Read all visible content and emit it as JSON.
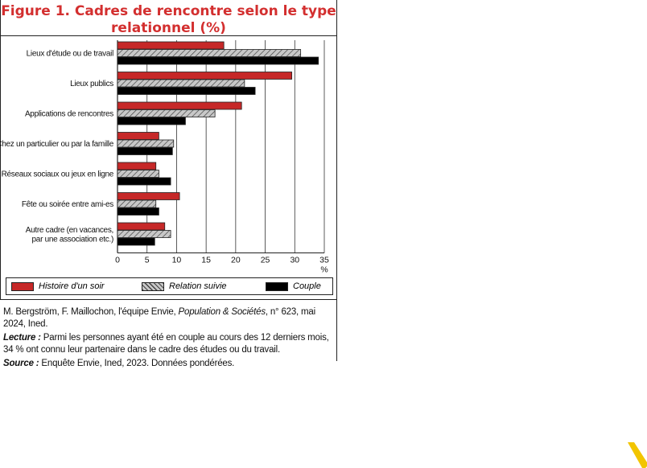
{
  "title": {
    "line1": "Figure 1. Cadres de rencontre selon le type",
    "line2": "relationnel (%)"
  },
  "legend": {
    "items": [
      "Histoire d'un soir",
      "Relation suivie",
      "Couple"
    ]
  },
  "footer": {
    "citation_pre": "M. Bergström, F. Maillochon, l'équipe Envie, ",
    "citation_journal": "Population & Sociétés",
    "citation_post": ", n° 623, mai 2024, Ined.",
    "lecture_label": "Lecture :",
    "lecture_text": " Parmi les personnes ayant été en couple au cours des 12 derniers mois, 34 % ont connu leur partenaire dans le cadre des études ou du travail.",
    "source_label": "Source :",
    "source_text": " Enquête Envie, Ined, 2023. Données pondérées."
  },
  "chart_data": {
    "type": "bar",
    "orientation": "horizontal",
    "categories": [
      "Lieux d'étude ou de travail",
      "Lieux publics",
      "Applications de rencontres",
      "Chez un particulier ou par la famille",
      "Réseaux sociaux ou jeux en ligne",
      "Fête ou soirée entre ami-es",
      "Autre cadre (en vacances,\npar une association etc.)"
    ],
    "series": [
      {
        "name": "Histoire d'un soir",
        "values": [
          18,
          29.5,
          21,
          7,
          6.5,
          10.5,
          8
        ],
        "color": "#c62828"
      },
      {
        "name": "Relation suivie",
        "values": [
          31,
          21.5,
          16.5,
          9.5,
          7,
          6.5,
          9
        ],
        "color": "#bdbdbd"
      },
      {
        "name": "Couple",
        "values": [
          34,
          23.3,
          11.5,
          9.3,
          9,
          7,
          6.3
        ],
        "color": "#000000"
      }
    ],
    "xlim": [
      0,
      35
    ],
    "xticks": [
      "0",
      "5",
      "10",
      "15",
      "20",
      "25",
      "30",
      "35"
    ],
    "unit": "%",
    "grid": true,
    "legend_position": "bottom"
  }
}
